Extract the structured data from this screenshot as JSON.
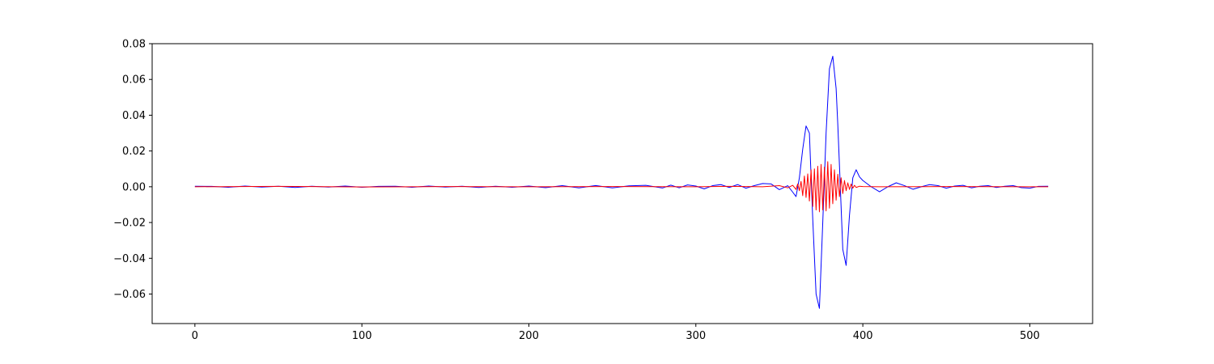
{
  "chart_data": {
    "type": "line",
    "title": "",
    "xlabel": "",
    "ylabel": "",
    "xlim": [
      -25.6,
      537.6
    ],
    "ylim": [
      -0.0765,
      0.08
    ],
    "xticks": [
      0,
      100,
      200,
      300,
      400,
      500
    ],
    "xtick_labels": [
      "0",
      "100",
      "200",
      "300",
      "400",
      "500"
    ],
    "yticks": [
      -0.06,
      -0.04,
      -0.02,
      0.0,
      0.02,
      0.04,
      0.06,
      0.08
    ],
    "ytick_labels": [
      "−0.06",
      "−0.04",
      "−0.02",
      "0.00",
      "0.02",
      "0.04",
      "0.06",
      "0.08"
    ],
    "grid": false,
    "legend": "none",
    "series": [
      {
        "color": "#0000ff",
        "x": [
          0,
          10,
          20,
          30,
          40,
          50,
          60,
          70,
          80,
          90,
          100,
          110,
          120,
          130,
          140,
          150,
          160,
          170,
          180,
          190,
          200,
          210,
          220,
          230,
          240,
          250,
          260,
          270,
          280,
          285,
          290,
          295,
          300,
          305,
          310,
          315,
          320,
          325,
          330,
          335,
          340,
          345,
          350,
          355,
          358,
          360,
          362,
          364,
          366,
          368,
          370,
          372,
          374,
          376,
          378,
          380,
          382,
          384,
          385,
          386,
          388,
          390,
          392,
          394,
          396,
          398,
          400,
          405,
          410,
          415,
          420,
          425,
          430,
          435,
          440,
          445,
          450,
          455,
          460,
          465,
          470,
          475,
          480,
          485,
          490,
          495,
          500,
          505,
          511
        ],
        "y": [
          0.0003,
          0.0002,
          -0.0003,
          0.0004,
          -0.0002,
          0.0003,
          -0.0004,
          0.0003,
          -0.0002,
          0.0004,
          -0.0003,
          0.0002,
          0.0003,
          -0.0003,
          0.0004,
          -0.0002,
          0.0003,
          -0.0004,
          0.0003,
          -0.0003,
          0.0004,
          -0.0005,
          0.0006,
          -0.0006,
          0.0007,
          -0.0006,
          0.0005,
          0.0008,
          -0.0007,
          0.0009,
          -0.0006,
          0.001,
          0.0004,
          -0.0012,
          0.0006,
          0.0012,
          -0.0004,
          0.0012,
          -0.0008,
          0.0006,
          0.0018,
          0.0016,
          -0.0016,
          0.0006,
          -0.003,
          -0.0055,
          0.005,
          0.021,
          0.034,
          0.03,
          -0.018,
          -0.06,
          -0.068,
          -0.02,
          0.03,
          0.066,
          0.073,
          0.055,
          0.035,
          0.012,
          -0.035,
          -0.044,
          -0.016,
          0.005,
          0.0095,
          0.0055,
          0.0035,
          0.0,
          -0.0028,
          0.0,
          0.0022,
          0.0006,
          -0.0014,
          0.0,
          0.0012,
          0.0006,
          -0.0008,
          0.0004,
          0.0008,
          -0.0006,
          0.0003,
          0.0006,
          -0.0004,
          0.0003,
          0.0006,
          -0.0005,
          -0.0008,
          0.0002,
          0.0003
        ]
      },
      {
        "color": "#ff0000",
        "x": [
          0,
          50,
          100,
          150,
          200,
          250,
          300,
          320,
          340,
          350,
          355,
          358,
          360,
          361,
          362,
          363,
          364,
          365,
          366,
          367,
          368,
          369,
          370,
          371,
          372,
          373,
          374,
          375,
          376,
          377,
          378,
          379,
          380,
          381,
          382,
          383,
          384,
          385,
          386,
          387,
          388,
          389,
          390,
          391,
          392,
          393,
          394,
          395,
          396,
          398,
          400,
          410,
          450,
          500,
          511
        ],
        "y": [
          0.0,
          0.0002,
          -0.0001,
          0.0001,
          0.0,
          0.0001,
          0.0,
          0.0002,
          0.0,
          0.0006,
          -0.0006,
          0.0008,
          -0.0015,
          0.0016,
          -0.0022,
          0.003,
          -0.005,
          0.006,
          -0.006,
          0.0072,
          -0.008,
          0.0095,
          -0.011,
          0.01,
          -0.013,
          0.0115,
          -0.014,
          0.0125,
          -0.013,
          0.011,
          -0.0135,
          0.014,
          -0.012,
          0.0125,
          -0.0095,
          0.0095,
          -0.0075,
          0.007,
          -0.0055,
          0.005,
          -0.0038,
          0.0035,
          -0.0022,
          0.0022,
          -0.0015,
          0.0015,
          -0.0008,
          0.0008,
          -0.0004,
          0.0003,
          0.0001,
          0.0,
          0.0001,
          0.0,
          0.0
        ]
      }
    ]
  }
}
